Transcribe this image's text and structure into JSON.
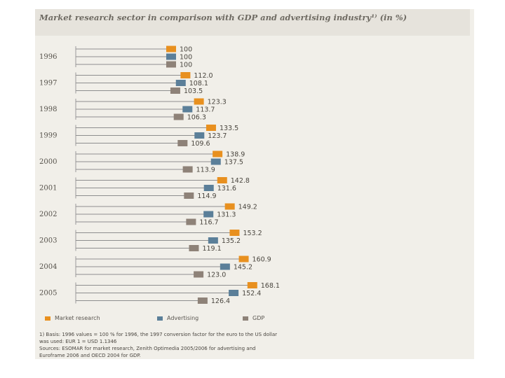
{
  "chart_data": {
    "type": "bar",
    "orientation": "horizontal",
    "title": "Market research sector in comparison with GDP and advertising industry¹⁾ (in %)",
    "categories": [
      "1996",
      "1997",
      "1998",
      "1999",
      "2000",
      "2001",
      "2002",
      "2003",
      "2004",
      "2005"
    ],
    "series": [
      {
        "name": "Market research",
        "color": "#e8901f",
        "values": [
          100,
          112.0,
          123.3,
          133.5,
          138.9,
          142.8,
          149.2,
          153.2,
          160.9,
          168.1
        ],
        "labels": [
          "100",
          "112.0",
          "123.3",
          "133.5",
          "138.9",
          "142.8",
          "149.2",
          "153.2",
          "160.9",
          "168.1"
        ]
      },
      {
        "name": "Advertising",
        "color": "#5b7f99",
        "values": [
          100,
          108.1,
          113.7,
          123.7,
          137.5,
          131.6,
          131.3,
          135.2,
          145.2,
          152.4
        ],
        "labels": [
          "100",
          "108.1",
          "113.7",
          "123.7",
          "137.5",
          "131.6",
          "131.3",
          "135.2",
          "145.2",
          "152.4"
        ]
      },
      {
        "name": "GDP",
        "color": "#8e8278",
        "values": [
          100,
          103.5,
          106.3,
          109.6,
          113.9,
          114.9,
          116.7,
          119.1,
          123.0,
          126.4
        ],
        "labels": [
          "100",
          "103.5",
          "106.3",
          "109.6",
          "113.9",
          "114.9",
          "116.7",
          "119.1",
          "123.0",
          "126.4"
        ]
      }
    ],
    "legend": {
      "position": "bottom",
      "items": [
        "Market research",
        "Advertising",
        "GDP"
      ]
    },
    "grid": false
  },
  "notes": {
    "line1": "1) Basis: 1996 values = 100 %      for 1996, the 1997 conversion factor for the euro to the US dollar",
    "line2": "was used: EUR 1 = USD 1.1346",
    "line3": "Sources: ESOMAR for market research, Zenith Optimedia 2005/2006 for advertising and",
    "line4": "Euroframe 2006 and OECD 2004 for GDP."
  }
}
